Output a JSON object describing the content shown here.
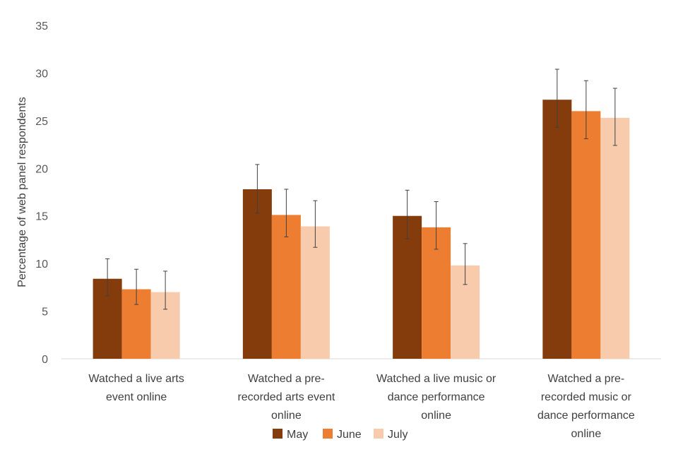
{
  "chart_data": {
    "type": "bar",
    "ylabel": "Percentage of web panel respondents",
    "ylim": [
      0,
      35
    ],
    "yticks": [
      0,
      5,
      10,
      15,
      20,
      25,
      30,
      35
    ],
    "grid": false,
    "legend_position": "bottom",
    "categories": [
      [
        "Watched a live arts",
        "event online"
      ],
      [
        "Watched a pre-",
        "recorded arts event",
        "online"
      ],
      [
        "Watched a live music or",
        "dance performance",
        "online"
      ],
      [
        "Watched a pre-",
        "recorded music or",
        "dance performance",
        "online"
      ]
    ],
    "series": [
      {
        "name": "May",
        "color": "#843c0c",
        "values": [
          8.4,
          17.8,
          15.0,
          27.2
        ],
        "err_low": [
          6.6,
          15.3,
          12.6,
          24.3
        ],
        "err_high": [
          10.5,
          20.4,
          17.7,
          30.4
        ]
      },
      {
        "name": "June",
        "color": "#ed7d31",
        "values": [
          7.3,
          15.1,
          13.8,
          26.0
        ],
        "err_low": [
          5.7,
          12.8,
          11.5,
          23.1
        ],
        "err_high": [
          9.4,
          17.8,
          16.5,
          29.2
        ]
      },
      {
        "name": "July",
        "color": "#f8cbad",
        "values": [
          7.0,
          13.9,
          9.8,
          25.3
        ],
        "err_low": [
          5.2,
          11.7,
          7.8,
          22.4
        ],
        "err_high": [
          9.2,
          16.6,
          12.1,
          28.4
        ]
      }
    ]
  }
}
